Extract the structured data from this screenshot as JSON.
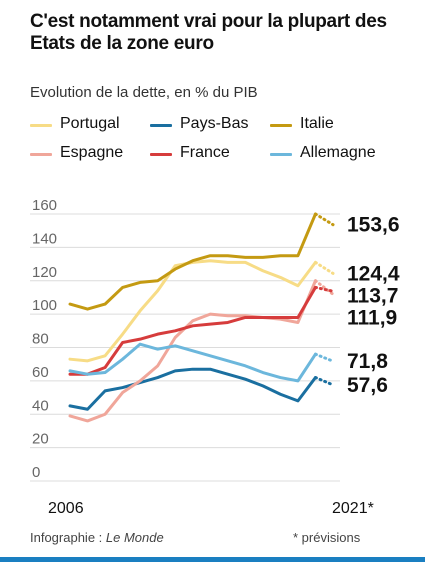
{
  "title": "C'est notamment vrai pour la plupart des Etats de la zone euro",
  "subtitle": "Evolution de la dette, en % du PIB",
  "credit_prefix": "Infographie : ",
  "credit_source": "Le Monde",
  "note": "* prévisions",
  "colors": {
    "portugal": "#f7dc86",
    "pays_bas": "#1a6fa0",
    "italie": "#c49a12",
    "espagne": "#f0a69a",
    "france": "#d63c3c",
    "allemagne": "#6cb7dc",
    "grid": "#dcdcdc"
  },
  "chart_data": {
    "type": "line",
    "x": [
      2006,
      2007,
      2008,
      2009,
      2010,
      2011,
      2012,
      2013,
      2014,
      2015,
      2016,
      2017,
      2018,
      2019,
      2020,
      2021
    ],
    "x_tick_labels": [
      "2006",
      "2021*"
    ],
    "forecast_from": 2020,
    "ylim": [
      0,
      160
    ],
    "yticks": [
      0,
      20,
      40,
      60,
      80,
      100,
      120,
      140,
      160
    ],
    "grid": true,
    "legend_position": "top",
    "series": [
      {
        "name": "Portugal",
        "color_key": "portugal",
        "values": [
          73,
          72,
          75,
          88,
          102,
          114,
          129,
          131,
          132,
          131,
          131,
          126,
          122,
          117,
          131,
          124.4
        ],
        "end_label": "124,4"
      },
      {
        "name": "Pays-Bas",
        "color_key": "pays_bas",
        "values": [
          45,
          43,
          54,
          56,
          59,
          62,
          66,
          67,
          67,
          64,
          61,
          57,
          52,
          48,
          62,
          57.6
        ],
        "end_label": "57,6"
      },
      {
        "name": "Italie",
        "color_key": "italie",
        "values": [
          106,
          103,
          106,
          116,
          119,
          120,
          127,
          132,
          135,
          135,
          134,
          134,
          135,
          135,
          160,
          153.6
        ],
        "end_label": "153,6"
      },
      {
        "name": "Espagne",
        "color_key": "espagne",
        "values": [
          39,
          36,
          40,
          53,
          60,
          69,
          86,
          96,
          100,
          99,
          99,
          98,
          97,
          95,
          120,
          111.9
        ],
        "end_label": "111,9"
      },
      {
        "name": "France",
        "color_key": "france",
        "values": [
          64,
          64,
          68,
          83,
          85,
          88,
          90,
          93,
          94,
          95,
          98,
          98,
          98,
          98,
          116,
          113.7
        ],
        "end_label": "113,7"
      },
      {
        "name": "Allemagne",
        "color_key": "allemagne",
        "values": [
          66,
          64,
          65,
          73,
          82,
          79,
          81,
          78,
          75,
          72,
          69,
          65,
          62,
          60,
          76,
          71.8
        ],
        "end_label": "71,8"
      }
    ]
  }
}
